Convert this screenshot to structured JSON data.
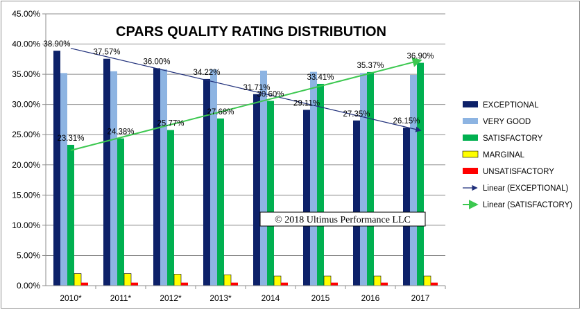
{
  "chart_data": {
    "type": "bar",
    "title": "CPARS QUALITY RATING DISTRIBUTION",
    "categories": [
      "2010*",
      "2011*",
      "2012*",
      "2013*",
      "2014",
      "2015",
      "2016",
      "2017"
    ],
    "ylim": [
      0,
      45
    ],
    "ytick_labels": [
      "0.00%",
      "5.00%",
      "10.00%",
      "15.00%",
      "20.00%",
      "25.00%",
      "30.00%",
      "35.00%",
      "40.00%",
      "45.00%"
    ],
    "grid": true,
    "legend_position": "right",
    "series": [
      {
        "name": "EXCEPTIONAL",
        "color": "#0d2169",
        "values": [
          38.9,
          37.57,
          36.0,
          34.22,
          31.71,
          29.11,
          27.35,
          26.15
        ],
        "labels": [
          "38.90%",
          "37.57%",
          "36.00%",
          "34.22%",
          "31.71%",
          "29.11%",
          "27.35%",
          "26.15%"
        ]
      },
      {
        "name": "VERY GOOD",
        "color": "#8db4e2",
        "values": [
          35.2,
          35.5,
          35.8,
          35.8,
          35.6,
          35.4,
          35.2,
          34.9
        ]
      },
      {
        "name": "SATISFACTORY",
        "color": "#00b050",
        "values": [
          23.31,
          24.38,
          25.77,
          27.68,
          30.6,
          33.41,
          35.37,
          36.9
        ],
        "labels": [
          "23.31%",
          "24.38%",
          "25.77%",
          "27.68%",
          "30.60%",
          "33.41%",
          "35.37%",
          "36.90%"
        ]
      },
      {
        "name": "MARGINAL",
        "color": "#ffff00",
        "values": [
          2.0,
          2.0,
          1.9,
          1.8,
          1.6,
          1.6,
          1.6,
          1.6
        ]
      },
      {
        "name": "UNSATISFACTORY",
        "color": "#ff0000",
        "values": [
          0.5,
          0.5,
          0.5,
          0.5,
          0.5,
          0.5,
          0.5,
          0.5
        ]
      }
    ],
    "trendlines": [
      {
        "name": "Linear (EXCEPTIONAL)",
        "color": "#1f2f7a",
        "from": [
          0,
          39.3
        ],
        "to": [
          7,
          25.7
        ]
      },
      {
        "name": "Linear (SATISFACTORY)",
        "color": "#3cc850",
        "from": [
          0,
          22.4
        ],
        "to": [
          7,
          37.3
        ]
      }
    ],
    "annotation": "© 2018 Ultimus Performance LLC"
  }
}
